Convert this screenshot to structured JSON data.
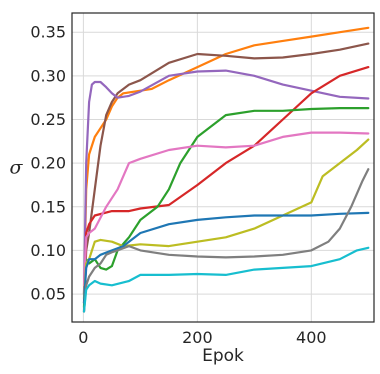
{
  "chart_data": {
    "type": "line",
    "xlabel": "Epok",
    "ylabel": "σ",
    "xlim": [
      -20,
      510
    ],
    "ylim": [
      0.018,
      0.372
    ],
    "xticks": [
      0,
      200,
      400
    ],
    "xtick_labels": [
      "0",
      "200",
      "400"
    ],
    "yticks": [
      0.05,
      0.1,
      0.15,
      0.2,
      0.25,
      0.3,
      0.35
    ],
    "ytick_labels": [
      "0.05",
      "0.10",
      "0.15",
      "0.20",
      "0.25",
      "0.30",
      "0.35"
    ],
    "grid": true,
    "legend": "none",
    "series": [
      {
        "color": "#ff7f0e",
        "points": [
          [
            1,
            0.05
          ],
          [
            5,
            0.17
          ],
          [
            10,
            0.21
          ],
          [
            20,
            0.23
          ],
          [
            30,
            0.24
          ],
          [
            40,
            0.25
          ],
          [
            50,
            0.265
          ],
          [
            60,
            0.275
          ],
          [
            70,
            0.28
          ],
          [
            100,
            0.283
          ],
          [
            120,
            0.285
          ],
          [
            150,
            0.295
          ],
          [
            200,
            0.31
          ],
          [
            250,
            0.325
          ],
          [
            300,
            0.335
          ],
          [
            350,
            0.34
          ],
          [
            400,
            0.345
          ],
          [
            450,
            0.35
          ],
          [
            500,
            0.355
          ]
        ]
      },
      {
        "color": "#8c564b",
        "points": [
          [
            1,
            0.04
          ],
          [
            5,
            0.1
          ],
          [
            10,
            0.12
          ],
          [
            20,
            0.17
          ],
          [
            30,
            0.22
          ],
          [
            40,
            0.255
          ],
          [
            50,
            0.27
          ],
          [
            60,
            0.28
          ],
          [
            80,
            0.29
          ],
          [
            100,
            0.295
          ],
          [
            150,
            0.315
          ],
          [
            200,
            0.325
          ],
          [
            250,
            0.323
          ],
          [
            300,
            0.32
          ],
          [
            350,
            0.321
          ],
          [
            400,
            0.325
          ],
          [
            450,
            0.33
          ],
          [
            500,
            0.337
          ]
        ]
      },
      {
        "color": "#9467bd",
        "points": [
          [
            1,
            0.05
          ],
          [
            5,
            0.2
          ],
          [
            10,
            0.27
          ],
          [
            15,
            0.29
          ],
          [
            20,
            0.293
          ],
          [
            30,
            0.293
          ],
          [
            40,
            0.287
          ],
          [
            50,
            0.28
          ],
          [
            60,
            0.275
          ],
          [
            80,
            0.277
          ],
          [
            100,
            0.282
          ],
          [
            150,
            0.3
          ],
          [
            200,
            0.305
          ],
          [
            250,
            0.306
          ],
          [
            300,
            0.3
          ],
          [
            350,
            0.29
          ],
          [
            400,
            0.283
          ],
          [
            450,
            0.276
          ],
          [
            500,
            0.274
          ]
        ]
      },
      {
        "color": "#d62728",
        "points": [
          [
            1,
            0.03
          ],
          [
            5,
            0.12
          ],
          [
            10,
            0.13
          ],
          [
            20,
            0.14
          ],
          [
            50,
            0.145
          ],
          [
            80,
            0.145
          ],
          [
            100,
            0.148
          ],
          [
            150,
            0.152
          ],
          [
            200,
            0.175
          ],
          [
            250,
            0.2
          ],
          [
            300,
            0.22
          ],
          [
            350,
            0.25
          ],
          [
            400,
            0.28
          ],
          [
            450,
            0.3
          ],
          [
            500,
            0.31
          ]
        ]
      },
      {
        "color": "#2ca02c",
        "points": [
          [
            1,
            0.035
          ],
          [
            5,
            0.09
          ],
          [
            10,
            0.085
          ],
          [
            20,
            0.09
          ],
          [
            30,
            0.08
          ],
          [
            40,
            0.078
          ],
          [
            50,
            0.082
          ],
          [
            60,
            0.1
          ],
          [
            80,
            0.115
          ],
          [
            100,
            0.135
          ],
          [
            130,
            0.15
          ],
          [
            150,
            0.17
          ],
          [
            170,
            0.2
          ],
          [
            200,
            0.23
          ],
          [
            250,
            0.255
          ],
          [
            300,
            0.26
          ],
          [
            350,
            0.26
          ],
          [
            400,
            0.262
          ],
          [
            450,
            0.263
          ],
          [
            500,
            0.263
          ]
        ]
      },
      {
        "color": "#e377c2",
        "points": [
          [
            1,
            0.06
          ],
          [
            5,
            0.115
          ],
          [
            10,
            0.12
          ],
          [
            20,
            0.125
          ],
          [
            40,
            0.15
          ],
          [
            60,
            0.17
          ],
          [
            80,
            0.2
          ],
          [
            100,
            0.205
          ],
          [
            150,
            0.215
          ],
          [
            200,
            0.22
          ],
          [
            250,
            0.218
          ],
          [
            300,
            0.22
          ],
          [
            350,
            0.23
          ],
          [
            400,
            0.235
          ],
          [
            450,
            0.235
          ],
          [
            500,
            0.234
          ]
        ]
      },
      {
        "color": "#bcbd22",
        "points": [
          [
            1,
            0.045
          ],
          [
            5,
            0.085
          ],
          [
            10,
            0.09
          ],
          [
            20,
            0.11
          ],
          [
            30,
            0.112
          ],
          [
            50,
            0.11
          ],
          [
            70,
            0.105
          ],
          [
            100,
            0.107
          ],
          [
            150,
            0.105
          ],
          [
            200,
            0.11
          ],
          [
            250,
            0.115
          ],
          [
            300,
            0.125
          ],
          [
            350,
            0.14
          ],
          [
            400,
            0.155
          ],
          [
            420,
            0.185
          ],
          [
            450,
            0.2
          ],
          [
            480,
            0.215
          ],
          [
            500,
            0.227
          ]
        ]
      },
      {
        "color": "#1f77b4",
        "points": [
          [
            1,
            0.04
          ],
          [
            5,
            0.08
          ],
          [
            10,
            0.09
          ],
          [
            20,
            0.09
          ],
          [
            30,
            0.095
          ],
          [
            50,
            0.1
          ],
          [
            70,
            0.105
          ],
          [
            100,
            0.12
          ],
          [
            150,
            0.13
          ],
          [
            200,
            0.135
          ],
          [
            250,
            0.138
          ],
          [
            300,
            0.14
          ],
          [
            350,
            0.14
          ],
          [
            400,
            0.14
          ],
          [
            450,
            0.142
          ],
          [
            500,
            0.143
          ]
        ]
      },
      {
        "color": "#7f7f7f",
        "points": [
          [
            1,
            0.03
          ],
          [
            5,
            0.06
          ],
          [
            10,
            0.07
          ],
          [
            20,
            0.08
          ],
          [
            30,
            0.085
          ],
          [
            40,
            0.095
          ],
          [
            50,
            0.098
          ],
          [
            60,
            0.1
          ],
          [
            80,
            0.105
          ],
          [
            100,
            0.1
          ],
          [
            150,
            0.095
          ],
          [
            200,
            0.093
          ],
          [
            250,
            0.092
          ],
          [
            300,
            0.093
          ],
          [
            350,
            0.095
          ],
          [
            400,
            0.1
          ],
          [
            430,
            0.11
          ],
          [
            450,
            0.125
          ],
          [
            470,
            0.15
          ],
          [
            490,
            0.18
          ],
          [
            500,
            0.193
          ]
        ]
      },
      {
        "color": "#17becf",
        "points": [
          [
            1,
            0.03
          ],
          [
            5,
            0.055
          ],
          [
            10,
            0.06
          ],
          [
            20,
            0.065
          ],
          [
            30,
            0.062
          ],
          [
            50,
            0.06
          ],
          [
            80,
            0.065
          ],
          [
            100,
            0.072
          ],
          [
            150,
            0.072
          ],
          [
            200,
            0.073
          ],
          [
            250,
            0.072
          ],
          [
            300,
            0.078
          ],
          [
            350,
            0.08
          ],
          [
            400,
            0.082
          ],
          [
            450,
            0.09
          ],
          [
            480,
            0.1
          ],
          [
            500,
            0.103
          ]
        ]
      }
    ]
  }
}
